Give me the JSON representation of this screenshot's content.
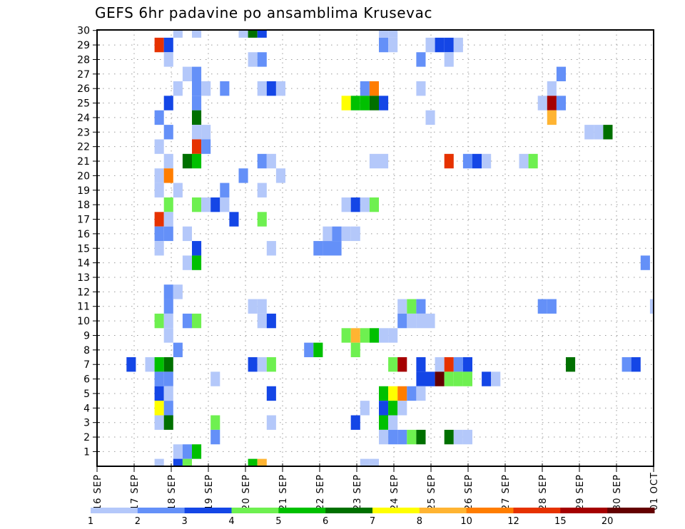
{
  "chart_data": {
    "type": "heatmap",
    "title": "GEFS 6hr padavine po ansamblima Krusevac",
    "xlabel": "",
    "ylabel": "",
    "x_tick_labels": [
      "16 SEP",
      "17 SEP",
      "18 SEP",
      "19 SEP",
      "20 SEP",
      "21 SEP",
      "22 SEP",
      "23 SEP",
      "24 SEP",
      "25 SEP",
      "26 SEP",
      "27 SEP",
      "28 SEP",
      "29 SEP",
      "30 SEP",
      "01 OCT"
    ],
    "x_steps_per_day": 4,
    "x_range_steps": [
      0,
      60
    ],
    "y_tick_labels": [
      "1",
      "2",
      "3",
      "4",
      "5",
      "6",
      "7",
      "8",
      "9",
      "10",
      "11",
      "12",
      "13",
      "14",
      "15",
      "16",
      "17",
      "18",
      "19",
      "20",
      "21",
      "22",
      "23",
      "24",
      "25",
      "26",
      "27",
      "28",
      "29",
      "30"
    ],
    "y_range": [
      0,
      30
    ],
    "grid": true,
    "legend": {
      "placement": "bottom",
      "labels": [
        "1",
        "2",
        "3",
        "4",
        "5",
        "6",
        "7",
        "8",
        "10",
        "12",
        "15",
        "20"
      ],
      "colors": [
        "#b4c8fa",
        "#6490f8",
        "#1446e6",
        "#6ef050",
        "#00c000",
        "#007000",
        "#ffff00",
        "#ffb432",
        "#ff7d00",
        "#e63200",
        "#a50000",
        "#640000"
      ]
    },
    "cell_format": "[time_step_6h, member, color_class(1-12)]",
    "cells": [
      [
        8,
        30,
        1
      ],
      [
        10,
        30,
        1
      ],
      [
        15,
        30,
        1
      ],
      [
        16,
        30,
        6
      ],
      [
        17,
        30,
        3
      ],
      [
        30,
        30,
        1
      ],
      [
        31,
        30,
        1
      ],
      [
        6,
        29,
        10
      ],
      [
        7,
        29,
        3
      ],
      [
        30,
        29,
        2
      ],
      [
        31,
        29,
        1
      ],
      [
        35,
        29,
        1
      ],
      [
        36,
        29,
        3
      ],
      [
        37,
        29,
        3
      ],
      [
        38,
        29,
        1
      ],
      [
        7,
        28,
        1
      ],
      [
        16,
        28,
        1
      ],
      [
        17,
        28,
        2
      ],
      [
        34,
        28,
        2
      ],
      [
        37,
        28,
        1
      ],
      [
        9,
        27,
        1
      ],
      [
        10,
        27,
        2
      ],
      [
        49,
        27,
        2
      ],
      [
        8,
        26,
        1
      ],
      [
        10,
        26,
        2
      ],
      [
        11,
        26,
        1
      ],
      [
        13,
        26,
        2
      ],
      [
        17,
        26,
        1
      ],
      [
        18,
        26,
        3
      ],
      [
        19,
        26,
        1
      ],
      [
        28,
        26,
        2
      ],
      [
        29,
        26,
        9
      ],
      [
        34,
        26,
        1
      ],
      [
        48,
        26,
        1
      ],
      [
        7,
        25,
        3
      ],
      [
        10,
        25,
        2
      ],
      [
        26,
        25,
        7
      ],
      [
        27,
        25,
        5
      ],
      [
        28,
        25,
        5
      ],
      [
        29,
        25,
        6
      ],
      [
        30,
        25,
        3
      ],
      [
        47,
        25,
        1
      ],
      [
        48,
        25,
        11
      ],
      [
        49,
        25,
        2
      ],
      [
        6,
        24,
        2
      ],
      [
        10,
        24,
        6
      ],
      [
        35,
        24,
        1
      ],
      [
        48,
        24,
        8
      ],
      [
        7,
        23,
        2
      ],
      [
        10,
        23,
        1
      ],
      [
        11,
        23,
        1
      ],
      [
        52,
        23,
        1
      ],
      [
        53,
        23,
        1
      ],
      [
        54,
        23,
        6
      ],
      [
        6,
        22,
        1
      ],
      [
        10,
        22,
        10
      ],
      [
        11,
        22,
        2
      ],
      [
        7,
        21,
        1
      ],
      [
        9,
        21,
        6
      ],
      [
        10,
        21,
        5
      ],
      [
        17,
        21,
        2
      ],
      [
        18,
        21,
        1
      ],
      [
        29,
        21,
        1
      ],
      [
        30,
        21,
        1
      ],
      [
        37,
        21,
        10
      ],
      [
        39,
        21,
        2
      ],
      [
        40,
        21,
        3
      ],
      [
        41,
        21,
        1
      ],
      [
        45,
        21,
        1
      ],
      [
        46,
        21,
        4
      ],
      [
        6,
        20,
        1
      ],
      [
        7,
        20,
        9
      ],
      [
        15,
        20,
        2
      ],
      [
        19,
        20,
        1
      ],
      [
        6,
        19,
        1
      ],
      [
        8,
        19,
        1
      ],
      [
        13,
        19,
        2
      ],
      [
        17,
        19,
        1
      ],
      [
        7,
        18,
        4
      ],
      [
        10,
        18,
        4
      ],
      [
        11,
        18,
        1
      ],
      [
        12,
        18,
        3
      ],
      [
        13,
        18,
        1
      ],
      [
        26,
        18,
        1
      ],
      [
        27,
        18,
        3
      ],
      [
        28,
        18,
        1
      ],
      [
        29,
        18,
        4
      ],
      [
        6,
        17,
        10
      ],
      [
        7,
        17,
        1
      ],
      [
        14,
        17,
        3
      ],
      [
        17,
        17,
        4
      ],
      [
        6,
        16,
        2
      ],
      [
        7,
        16,
        2
      ],
      [
        9,
        16,
        1
      ],
      [
        24,
        16,
        1
      ],
      [
        25,
        16,
        2
      ],
      [
        26,
        16,
        1
      ],
      [
        27,
        16,
        1
      ],
      [
        6,
        15,
        1
      ],
      [
        10,
        15,
        3
      ],
      [
        18,
        15,
        1
      ],
      [
        23,
        15,
        2
      ],
      [
        24,
        15,
        2
      ],
      [
        25,
        15,
        2
      ],
      [
        9,
        14,
        1
      ],
      [
        10,
        14,
        5
      ],
      [
        58,
        14,
        2
      ],
      [
        7,
        12,
        2
      ],
      [
        8,
        12,
        1
      ],
      [
        7,
        11,
        2
      ],
      [
        16,
        11,
        1
      ],
      [
        17,
        11,
        1
      ],
      [
        32,
        11,
        1
      ],
      [
        33,
        11,
        4
      ],
      [
        34,
        11,
        2
      ],
      [
        47,
        11,
        2
      ],
      [
        48,
        11,
        2
      ],
      [
        59,
        11,
        1
      ],
      [
        6,
        10,
        4
      ],
      [
        7,
        10,
        1
      ],
      [
        9,
        10,
        2
      ],
      [
        10,
        10,
        4
      ],
      [
        17,
        10,
        1
      ],
      [
        18,
        10,
        3
      ],
      [
        32,
        10,
        2
      ],
      [
        33,
        10,
        1
      ],
      [
        34,
        10,
        1
      ],
      [
        35,
        10,
        1
      ],
      [
        7,
        9,
        1
      ],
      [
        26,
        9,
        4
      ],
      [
        27,
        9,
        8
      ],
      [
        28,
        9,
        4
      ],
      [
        29,
        9,
        5
      ],
      [
        30,
        9,
        1
      ],
      [
        31,
        9,
        1
      ],
      [
        8,
        8,
        2
      ],
      [
        22,
        8,
        2
      ],
      [
        23,
        8,
        5
      ],
      [
        27,
        8,
        4
      ],
      [
        3,
        7,
        3
      ],
      [
        5,
        7,
        1
      ],
      [
        6,
        7,
        5
      ],
      [
        7,
        7,
        6
      ],
      [
        16,
        7,
        3
      ],
      [
        17,
        7,
        1
      ],
      [
        18,
        7,
        4
      ],
      [
        31,
        7,
        4
      ],
      [
        32,
        7,
        11
      ],
      [
        34,
        7,
        3
      ],
      [
        36,
        7,
        1
      ],
      [
        37,
        7,
        10
      ],
      [
        38,
        7,
        2
      ],
      [
        39,
        7,
        3
      ],
      [
        50,
        7,
        6
      ],
      [
        56,
        7,
        2
      ],
      [
        57,
        7,
        3
      ],
      [
        6,
        6,
        2
      ],
      [
        7,
        6,
        2
      ],
      [
        12,
        6,
        1
      ],
      [
        34,
        6,
        3
      ],
      [
        35,
        6,
        3
      ],
      [
        36,
        6,
        12
      ],
      [
        37,
        6,
        4
      ],
      [
        38,
        6,
        4
      ],
      [
        39,
        6,
        4
      ],
      [
        41,
        6,
        3
      ],
      [
        42,
        6,
        1
      ],
      [
        6,
        5,
        3
      ],
      [
        7,
        5,
        1
      ],
      [
        18,
        5,
        3
      ],
      [
        30,
        5,
        5
      ],
      [
        31,
        5,
        7
      ],
      [
        32,
        5,
        9
      ],
      [
        33,
        5,
        2
      ],
      [
        34,
        5,
        1
      ],
      [
        6,
        4,
        7
      ],
      [
        7,
        4,
        2
      ],
      [
        28,
        4,
        1
      ],
      [
        30,
        4,
        3
      ],
      [
        31,
        4,
        5
      ],
      [
        32,
        4,
        1
      ],
      [
        6,
        3,
        1
      ],
      [
        7,
        3,
        6
      ],
      [
        12,
        3,
        4
      ],
      [
        18,
        3,
        1
      ],
      [
        27,
        3,
        3
      ],
      [
        30,
        3,
        5
      ],
      [
        31,
        3,
        1
      ],
      [
        12,
        2,
        2
      ],
      [
        30,
        2,
        1
      ],
      [
        31,
        2,
        2
      ],
      [
        32,
        2,
        2
      ],
      [
        33,
        2,
        4
      ],
      [
        34,
        2,
        6
      ],
      [
        37,
        2,
        6
      ],
      [
        38,
        2,
        1
      ],
      [
        39,
        2,
        1
      ],
      [
        8,
        1,
        1
      ],
      [
        9,
        1,
        2
      ],
      [
        10,
        1,
        5
      ],
      [
        6,
        0,
        1
      ],
      [
        8,
        0,
        3
      ],
      [
        9,
        0,
        4
      ],
      [
        16,
        0,
        5
      ],
      [
        17,
        0,
        8
      ],
      [
        28,
        0,
        1
      ],
      [
        29,
        0,
        1
      ]
    ]
  }
}
